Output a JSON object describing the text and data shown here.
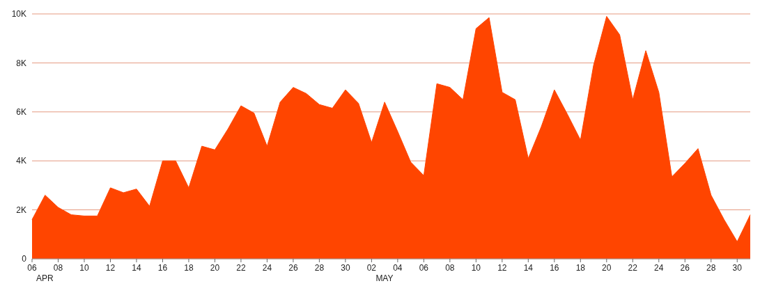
{
  "chart_data": {
    "type": "area",
    "categories": [
      "06",
      null,
      "08",
      null,
      "10",
      null,
      "12",
      null,
      "14",
      null,
      "16",
      null,
      "18",
      null,
      "20",
      null,
      "22",
      null,
      "24",
      null,
      "26",
      null,
      "28",
      null,
      "30",
      null,
      "02",
      null,
      "04",
      null,
      "06",
      null,
      "08",
      null,
      "10",
      null,
      "12",
      null,
      "14",
      null,
      "16",
      null,
      "18",
      null,
      "20",
      null,
      "22",
      null,
      "24",
      null,
      "26",
      null,
      "28",
      null,
      "30",
      null
    ],
    "series": [
      {
        "color": "#ff4500",
        "values": [
          1600,
          2600,
          2100,
          1800,
          1750,
          1750,
          2900,
          2700,
          2850,
          2150,
          4000,
          4000,
          2900,
          4600,
          4450,
          5300,
          6250,
          5950,
          4600,
          6400,
          7000,
          6750,
          6300,
          6150,
          6900,
          6350,
          4750,
          6400,
          5200,
          3950,
          3400,
          7150,
          7000,
          6500,
          9400,
          9850,
          6800,
          6500,
          4100,
          5400,
          6900,
          5900,
          4850,
          7900,
          9900,
          9150,
          6500,
          8500,
          6800,
          3350,
          3900,
          4500,
          2600,
          1600,
          700,
          1800
        ]
      }
    ],
    "ylim": [
      0,
      10000
    ],
    "yticks": [
      0,
      {
        "value": 2000,
        "label": "2K"
      },
      {
        "value": 4000,
        "label": "4K"
      },
      {
        "value": 6000,
        "label": "6K"
      },
      {
        "value": 8000,
        "label": "8K"
      },
      {
        "value": 10000,
        "label": "10K"
      }
    ],
    "grid": "y",
    "annotations": [
      "APR",
      "MAY"
    ]
  }
}
